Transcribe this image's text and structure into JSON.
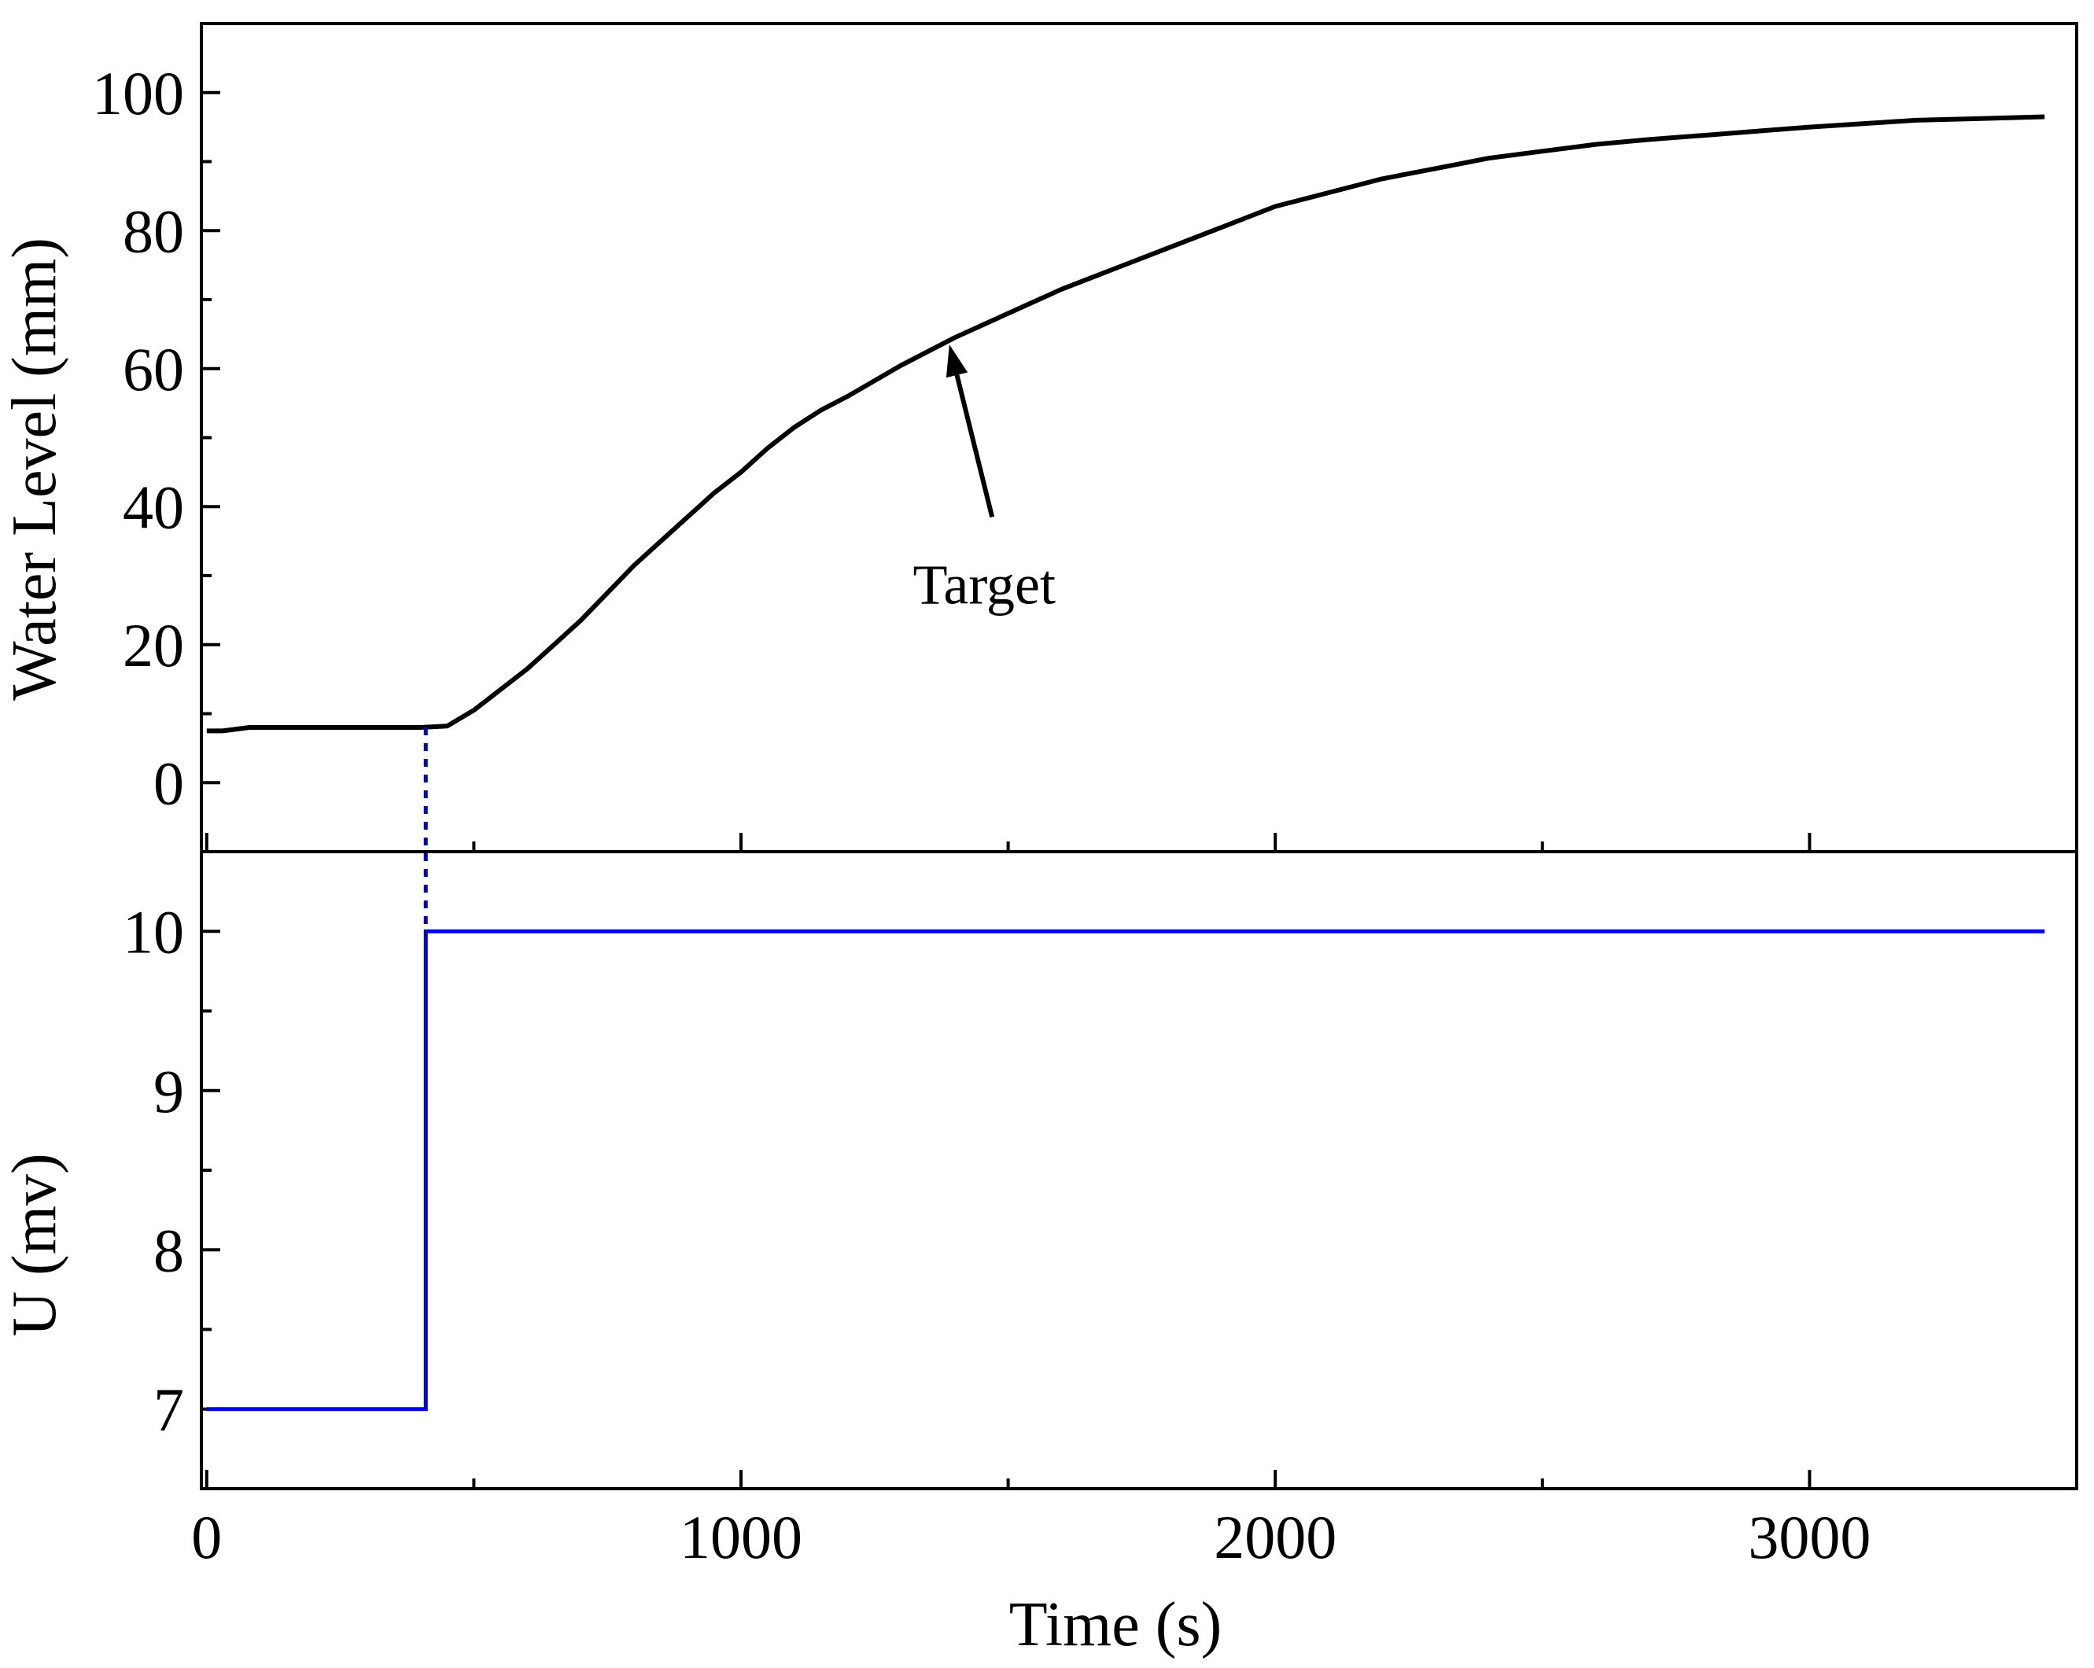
{
  "chart_data": [
    {
      "type": "line",
      "panel": "top",
      "ylabel": "Water Level (mm)",
      "xlim": [
        -10,
        3500
      ],
      "ylim": [
        -10,
        110
      ],
      "yticks": [
        0,
        20,
        40,
        60,
        80,
        100
      ],
      "ytick_labels": [
        "0",
        "20",
        "40",
        "60",
        "80",
        "100"
      ],
      "grid": false,
      "colors": {
        "line": "#000000",
        "marker_line": "#0000cc"
      },
      "series": [
        {
          "x": [
            0,
            30,
            80,
            100,
            200,
            300,
            400,
            450,
            500,
            550,
            600,
            650,
            700,
            750,
            800,
            850,
            900,
            950,
            1000,
            1050,
            1100,
            1150,
            1200,
            1300,
            1400,
            1500,
            1600,
            1700,
            1800,
            1900,
            2000,
            2100,
            2200,
            2300,
            2400,
            2500,
            2600,
            2700,
            2800,
            2900,
            3000,
            3100,
            3200,
            3300,
            3400,
            3440
          ],
          "y": [
            7.5,
            7.5,
            8,
            8,
            8,
            8,
            8,
            8.2,
            10.5,
            13.5,
            16.5,
            20,
            23.5,
            27.5,
            31.5,
            35,
            38.5,
            42,
            45,
            48.5,
            51.5,
            54,
            56,
            60.5,
            64.5,
            68,
            71.5,
            74.5,
            77.5,
            80.5,
            83.5,
            85.5,
            87.5,
            89,
            90.5,
            91.5,
            92.5,
            93.2,
            93.8,
            94.4,
            95,
            95.5,
            96,
            96.2,
            96.4,
            96.5
          ]
        }
      ],
      "annotations": [
        {
          "text": "Target",
          "x": 1470,
          "y": 38.5,
          "arrow_to": {
            "x": 1390,
            "y": 63.5
          }
        }
      ],
      "vertical_marker": {
        "x": 410,
        "y_from": 8,
        "style": "dotted"
      }
    },
    {
      "type": "line",
      "panel": "bottom",
      "xlabel": "Time (s)",
      "ylabel": "U (mv)",
      "xlim": [
        -10,
        3500
      ],
      "ylim": [
        6.5,
        10.5
      ],
      "xticks": [
        0,
        1000,
        2000,
        3000
      ],
      "xtick_labels": [
        "0",
        "1000",
        "2000",
        "3000"
      ],
      "yticks": [
        7,
        8,
        9,
        10
      ],
      "ytick_labels": [
        "7",
        "8",
        "9",
        "10"
      ],
      "grid": false,
      "colors": {
        "line": "#0000ee"
      },
      "series": [
        {
          "x": [
            0,
            410,
            410,
            3440
          ],
          "y": [
            7,
            7,
            10,
            10
          ]
        }
      ]
    }
  ]
}
